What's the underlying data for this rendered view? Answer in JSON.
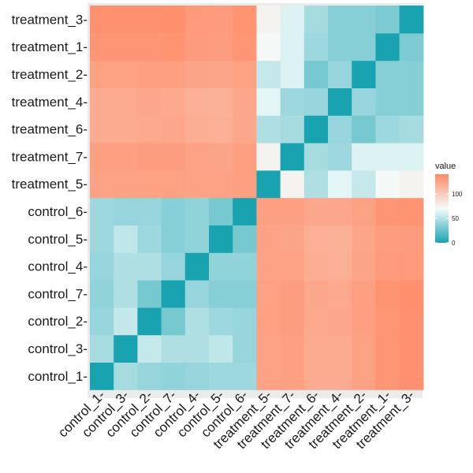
{
  "chart_data": {
    "type": "heatmap",
    "x_categories": [
      "control_1",
      "control_3",
      "control_2",
      "control_7",
      "control_4",
      "control_5",
      "control_6",
      "treatment_5",
      "treatment_7",
      "treatment_6",
      "treatment_4",
      "treatment_2",
      "treatment_1",
      "treatment_3"
    ],
    "y_categories": [
      "control_1",
      "control_3",
      "control_2",
      "control_7",
      "control_4",
      "control_5",
      "control_6",
      "treatment_5",
      "treatment_7",
      "treatment_6",
      "treatment_4",
      "treatment_2",
      "treatment_1",
      "treatment_3"
    ],
    "x_tick_labels": [
      "control_1-",
      "control_3-",
      "control_2-",
      "control_7-",
      "control_4-",
      "control_5-",
      "control_6-",
      "treatment_5-",
      "treatment_7-",
      "treatment_6-",
      "treatment_4-",
      "treatment_2-",
      "treatment_1-",
      "treatment_3-"
    ],
    "y_tick_labels": [
      "control_1-",
      "control_3-",
      "control_2-",
      "control_7-",
      "control_4-",
      "control_5-",
      "control_6-",
      "treatment_5-",
      "treatment_7-",
      "treatment_6-",
      "treatment_4-",
      "treatment_2-",
      "treatment_1-",
      "treatment_3-"
    ],
    "values": [
      [
        0,
        45,
        40,
        38,
        40,
        42,
        42,
        125,
        127,
        120,
        120,
        126,
        133,
        135
      ],
      [
        45,
        0,
        55,
        48,
        48,
        53,
        40,
        125,
        127,
        120,
        120,
        126,
        133,
        135
      ],
      [
        40,
        55,
        0,
        30,
        48,
        42,
        40,
        126,
        128,
        121,
        122,
        127,
        133,
        135
      ],
      [
        38,
        48,
        30,
        0,
        40,
        35,
        35,
        126,
        128,
        122,
        121,
        127,
        134,
        136
      ],
      [
        40,
        48,
        48,
        40,
        0,
        38,
        38,
        125,
        125,
        118,
        117,
        124,
        129,
        130
      ],
      [
        42,
        53,
        42,
        35,
        38,
        0,
        30,
        125,
        124,
        117,
        116,
        123,
        128,
        129
      ],
      [
        42,
        40,
        40,
        35,
        38,
        30,
        0,
        127,
        127,
        122,
        122,
        126,
        133,
        134
      ],
      [
        125,
        125,
        126,
        126,
        125,
        125,
        127,
        0,
        75,
        48,
        65,
        55,
        72,
        75
      ],
      [
        127,
        127,
        128,
        128,
        125,
        124,
        127,
        75,
        0,
        45,
        42,
        62,
        62,
        62
      ],
      [
        120,
        120,
        121,
        122,
        118,
        117,
        122,
        48,
        45,
        0,
        40,
        30,
        42,
        45
      ],
      [
        120,
        120,
        122,
        121,
        117,
        116,
        122,
        65,
        42,
        40,
        0,
        40,
        35,
        35
      ],
      [
        126,
        126,
        127,
        127,
        124,
        123,
        126,
        55,
        62,
        30,
        40,
        0,
        35,
        35
      ],
      [
        133,
        133,
        133,
        134,
        129,
        128,
        133,
        72,
        62,
        42,
        35,
        35,
        0,
        32
      ],
      [
        135,
        135,
        135,
        136,
        130,
        129,
        134,
        75,
        62,
        45,
        35,
        35,
        32,
        0
      ]
    ],
    "value_range": [
      0,
      140
    ],
    "legend": {
      "title": "value",
      "ticks": [
        0,
        50,
        100
      ],
      "tick_labels": [
        "0",
        "50",
        "100"
      ],
      "placement": "right"
    },
    "colors": {
      "low": "#19a3b0",
      "mid": "#f4fbfb",
      "high": "#ff8a65",
      "mid_value": 70,
      "panel_background": "#ebebeb"
    },
    "grid": false
  }
}
